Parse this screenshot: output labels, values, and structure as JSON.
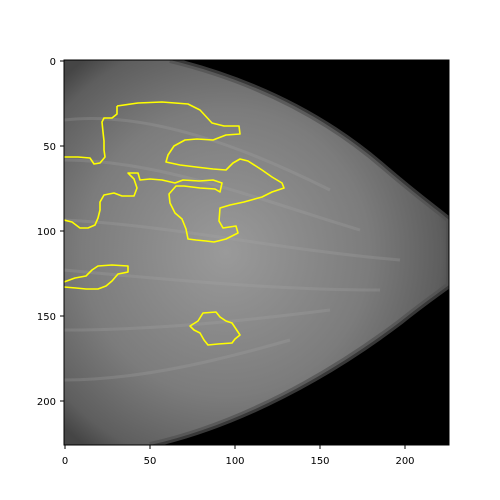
{
  "image": {
    "subject": "grayscale mammogram with yellow contour overlays",
    "background_color": "#000000",
    "tissue_color": "#8a8a8a",
    "contour_color": "#ffff00"
  },
  "axes": {
    "x_ticks": [
      "0",
      "50",
      "100",
      "150",
      "200"
    ],
    "y_ticks": [
      "0",
      "50",
      "100",
      "150",
      "200"
    ]
  }
}
